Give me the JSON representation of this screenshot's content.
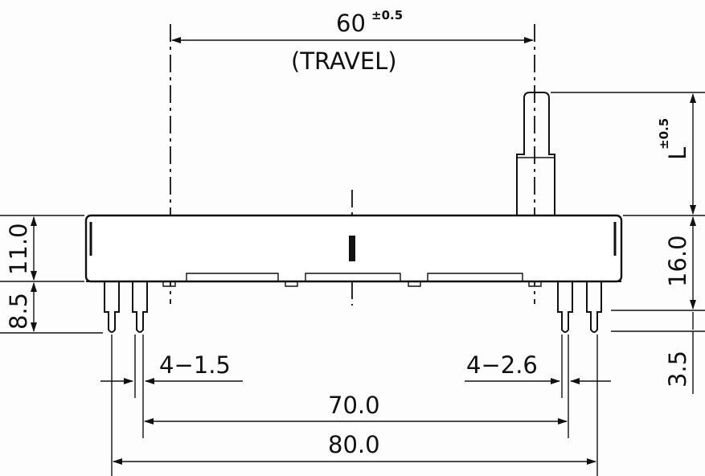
{
  "drawing": {
    "travel": {
      "value": "60",
      "tolerance": "±0.5",
      "note": "(TRAVEL)"
    },
    "lever": {
      "symbol": "L",
      "tolerance": "±0.5"
    },
    "body_height_right": "16.0",
    "pin_length_right": "3.5",
    "body_height_left": "11.0",
    "pin_length_left": "8.5",
    "pin_spec_left": "4−1.5",
    "pin_spec_right": "4−2.6",
    "inner_pitch": "70.0",
    "outer_pitch": "80.0"
  }
}
